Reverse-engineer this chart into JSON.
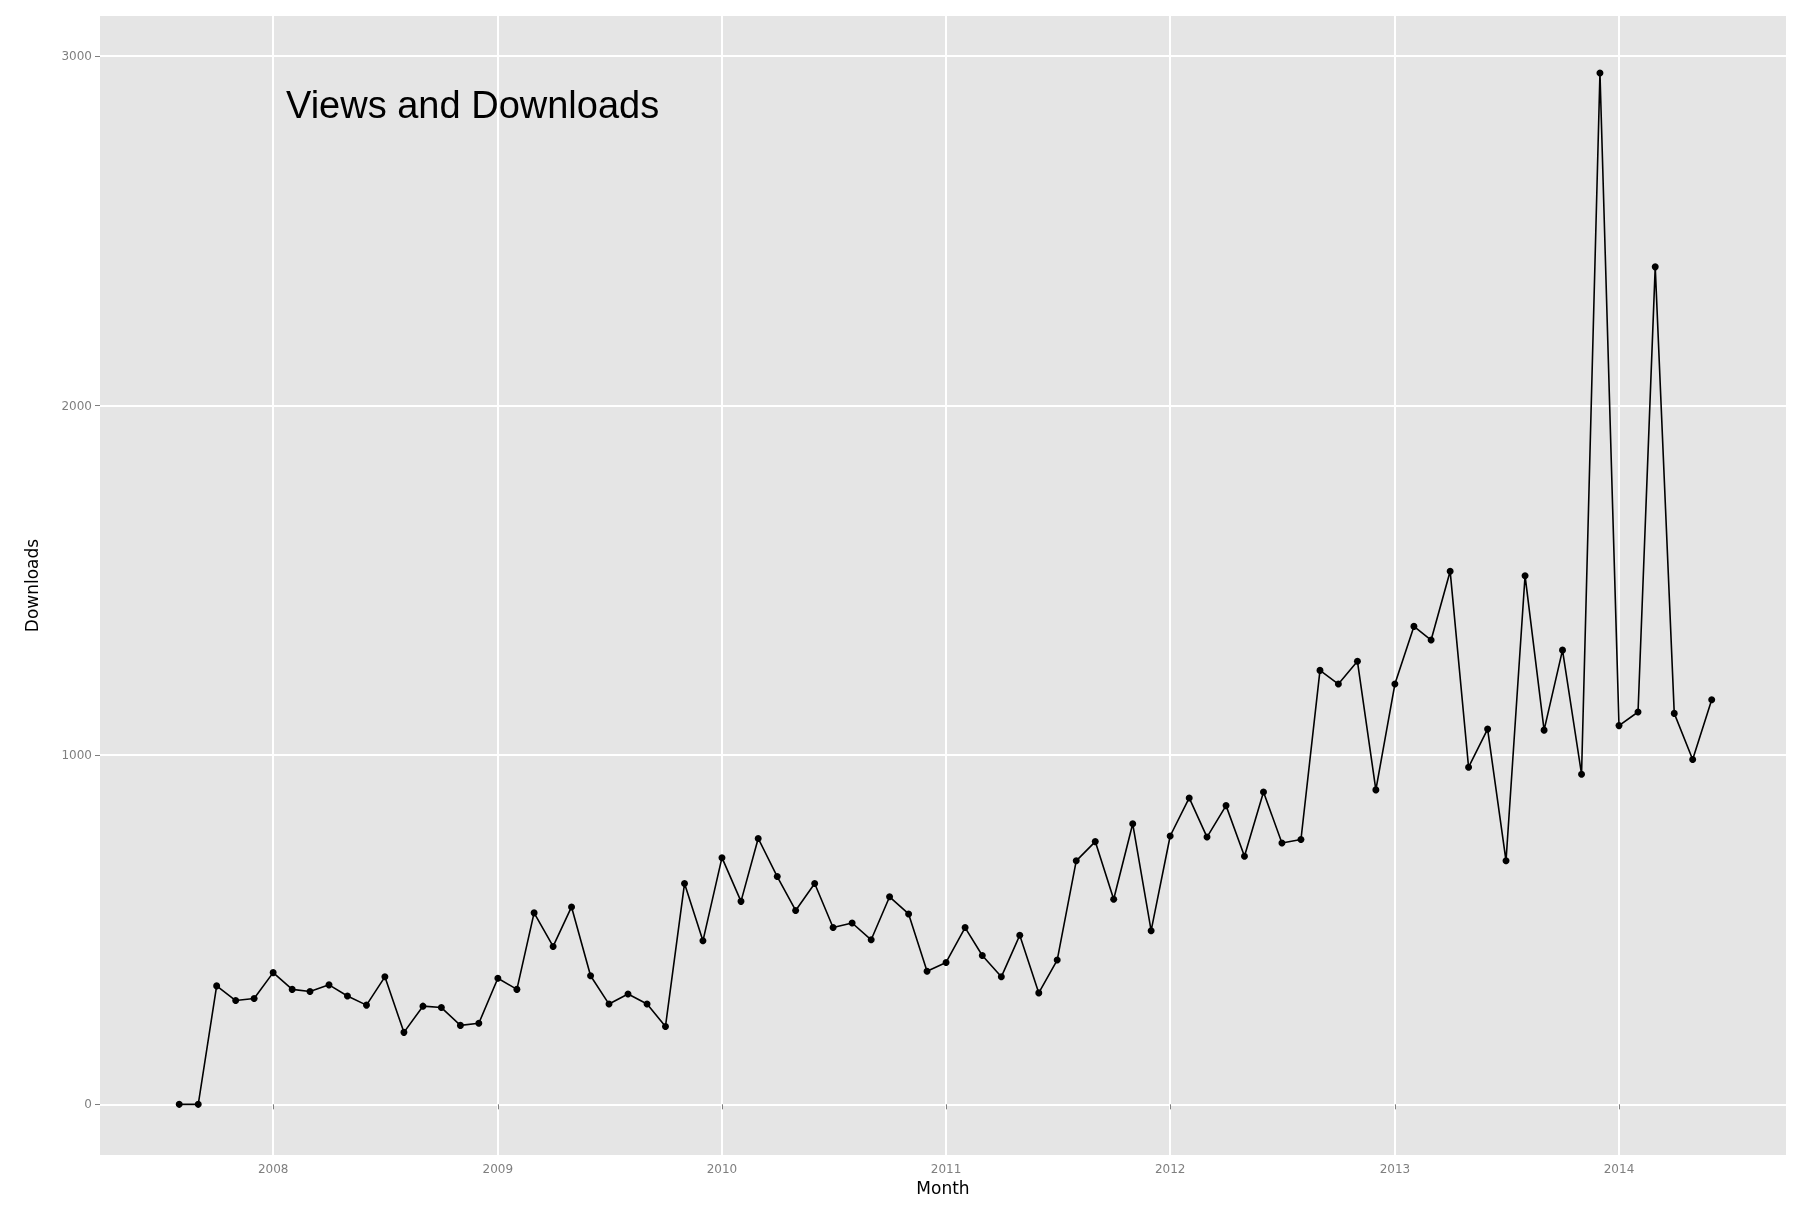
{
  "chart_data": {
    "type": "line",
    "xlabel": "Month",
    "ylabel": "Downloads",
    "annotations": [
      "Views and Downloads"
    ],
    "x": [
      "2007-08",
      "2007-09",
      "2007-10",
      "2007-11",
      "2007-12",
      "2008-01",
      "2008-02",
      "2008-03",
      "2008-04",
      "2008-05",
      "2008-06",
      "2008-07",
      "2008-08",
      "2008-09",
      "2008-10",
      "2008-11",
      "2008-12",
      "2009-01",
      "2009-02",
      "2009-03",
      "2009-04",
      "2009-05",
      "2009-06",
      "2009-07",
      "2009-08",
      "2009-09",
      "2009-10",
      "2009-11",
      "2009-12",
      "2010-01",
      "2010-02",
      "2010-03",
      "2010-04",
      "2010-05",
      "2010-06",
      "2010-07",
      "2010-08",
      "2010-09",
      "2010-10",
      "2010-11",
      "2010-12",
      "2011-01",
      "2011-02",
      "2011-03",
      "2011-04",
      "2011-05",
      "2011-06",
      "2011-07",
      "2011-08",
      "2011-09",
      "2011-10",
      "2011-11",
      "2011-12",
      "2012-01",
      "2012-02",
      "2012-03",
      "2012-04",
      "2012-05",
      "2012-06",
      "2012-07",
      "2012-08",
      "2012-09",
      "2012-10",
      "2012-11",
      "2012-12",
      "2013-01",
      "2013-02",
      "2013-03",
      "2013-04",
      "2013-05",
      "2013-06",
      "2013-07",
      "2013-08",
      "2013-09",
      "2013-10",
      "2013-11",
      "2013-12",
      "2014-01",
      "2014-02",
      "2014-03",
      "2014-04",
      "2014-05",
      "2014-06"
    ],
    "series": [
      {
        "color": "#000000",
        "values": [
          0,
          0,
          339,
          297,
          303,
          377,
          329,
          323,
          342,
          310,
          284,
          365,
          206,
          281,
          277,
          226,
          232,
          361,
          329,
          548,
          452,
          565,
          368,
          287,
          316,
          287,
          223,
          632,
          468,
          706,
          581,
          761,
          652,
          555,
          632,
          506,
          519,
          471,
          594,
          545,
          381,
          406,
          506,
          426,
          365,
          484,
          319,
          413,
          697,
          752,
          587,
          803,
          497,
          768,
          877,
          765,
          855,
          710,
          894,
          748,
          758,
          1242,
          1203,
          1268,
          900,
          1203,
          1368,
          1329,
          1526,
          965,
          1074,
          697,
          1513,
          1071,
          1300,
          945,
          2952,
          1084,
          1123,
          2397,
          1119,
          987,
          1158
        ]
      }
    ],
    "xlim": [
      "2007-03-25",
      "2014-09-30"
    ],
    "xticks": [
      "2008",
      "2009",
      "2010",
      "2011",
      "2012",
      "2013",
      "2014"
    ],
    "ylim": [
      -145,
      3115
    ],
    "yticks": [
      0,
      1000,
      2000,
      3000
    ],
    "grid": true,
    "marker": "circle",
    "line_style": "solid"
  }
}
